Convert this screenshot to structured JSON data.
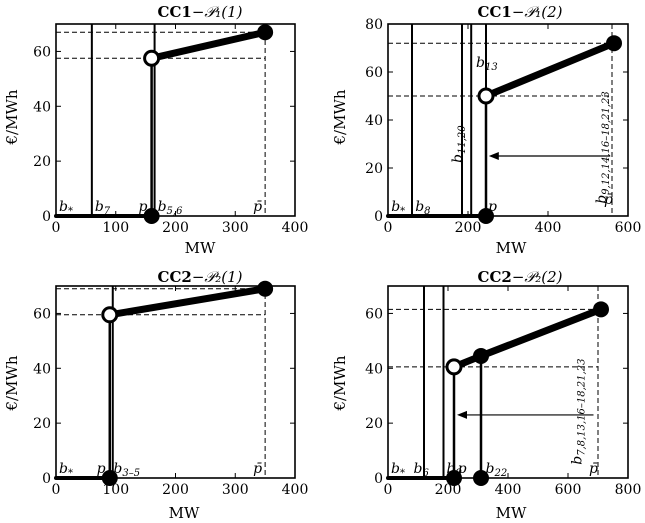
{
  "chart_data": [
    {
      "type": "line",
      "title": "CC1−𝒫₁(1)",
      "xlabel": "MW",
      "ylabel": "€/MWh",
      "xlim": [
        0,
        400
      ],
      "ylim": [
        0,
        70
      ],
      "xticks": [
        0,
        100,
        200,
        300,
        400
      ],
      "yticks": [
        0,
        20,
        40,
        60
      ],
      "grid": false,
      "series": [
        {
          "values": [
            [
              0,
              0
            ],
            [
              160,
              0
            ],
            [
              160,
              57.5
            ],
            [
              350,
              67
            ]
          ]
        }
      ],
      "open_points": [
        [
          160,
          57.5
        ]
      ],
      "filled_points": [
        [
          160,
          0
        ],
        [
          350,
          67
        ]
      ],
      "vlines": [
        60,
        165
      ],
      "hdash": [
        57.5,
        67
      ],
      "vdash": [
        350
      ],
      "labels": [
        {
          "text": "b*",
          "x": 5,
          "y": 0
        },
        {
          "text": "b7",
          "x": 65,
          "y": 0
        },
        {
          "text": "p",
          "x": 138,
          "y": 0
        },
        {
          "text": "b5,6",
          "x": 170,
          "y": 0
        },
        {
          "text": "p̄",
          "x": 330,
          "y": 0
        }
      ]
    },
    {
      "type": "line",
      "title": "CC1−𝒫₁(2)",
      "xlabel": "MW",
      "ylabel": "€/MWh",
      "xlim": [
        0,
        600
      ],
      "ylim": [
        0,
        80
      ],
      "xticks": [
        0,
        200,
        400,
        600
      ],
      "yticks": [
        0,
        20,
        40,
        60,
        80
      ],
      "grid": false,
      "series": [
        {
          "values": [
            [
              0,
              0
            ],
            [
              245,
              0
            ],
            [
              245,
              50
            ],
            [
              565,
              72
            ]
          ]
        }
      ],
      "open_points": [
        [
          245,
          50
        ]
      ],
      "filled_points": [
        [
          245,
          0
        ],
        [
          565,
          72
        ]
      ],
      "vlines": [
        60,
        185,
        208,
        245
      ],
      "hdash": [
        50,
        72
      ],
      "vdash": [
        560
      ],
      "arrow": {
        "from": 555,
        "to": 252,
        "y": 25
      },
      "labels": [
        {
          "text": "b*",
          "x": 8,
          "y": 0
        },
        {
          "text": "b8",
          "x": 68,
          "y": 0
        },
        {
          "text": "p",
          "x": 250,
          "y": 0
        },
        {
          "text": "b13",
          "x": 220,
          "y": 60
        },
        {
          "text": "b11,20",
          "x": 185,
          "y": 20,
          "rotate": true
        },
        {
          "text": "b9,12,14,16–18,21,23",
          "x": 545,
          "y": 3,
          "rotate": true
        },
        {
          "text": "p̄",
          "x": 540,
          "y": 3
        }
      ]
    },
    {
      "type": "line",
      "title": "CC2−𝒫₂(1)",
      "xlabel": "MW",
      "ylabel": "€/MWh",
      "xlim": [
        0,
        400
      ],
      "ylim": [
        0,
        70
      ],
      "xticks": [
        0,
        100,
        200,
        300,
        400
      ],
      "yticks": [
        0,
        20,
        40,
        60
      ],
      "grid": false,
      "series": [
        {
          "values": [
            [
              0,
              0
            ],
            [
              90,
              0
            ],
            [
              90,
              59.5
            ],
            [
              350,
              69
            ]
          ]
        }
      ],
      "open_points": [
        [
          90,
          59.5
        ]
      ],
      "filled_points": [
        [
          90,
          0
        ],
        [
          350,
          69
        ]
      ],
      "vlines": [
        95
      ],
      "hdash": [
        59.5,
        69
      ],
      "vdash": [
        350
      ],
      "labels": [
        {
          "text": "b*",
          "x": 5,
          "y": 0
        },
        {
          "text": "p",
          "x": 68,
          "y": 0
        },
        {
          "text": "b3–5",
          "x": 96,
          "y": 0
        },
        {
          "text": "p̄",
          "x": 330,
          "y": 0
        }
      ]
    },
    {
      "type": "line",
      "title": "CC2−𝒫₂(2)",
      "xlabel": "MW",
      "ylabel": "€/MWh",
      "xlim": [
        0,
        800
      ],
      "ylim": [
        0,
        70
      ],
      "xticks": [
        0,
        200,
        400,
        600,
        800
      ],
      "yticks": [
        0,
        20,
        40,
        60
      ],
      "grid": false,
      "series": [
        {
          "values": [
            [
              0,
              0
            ],
            [
              220,
              0
            ],
            [
              220,
              40.5
            ],
            [
              310,
              44.5
            ],
            [
              710,
              61.5
            ]
          ]
        },
        {
          "values": [
            [
              310,
              0
            ],
            [
              310,
              44.5
            ]
          ]
        }
      ],
      "open_points": [
        [
          220,
          40.5
        ]
      ],
      "filled_points": [
        [
          220,
          0
        ],
        [
          310,
          0
        ],
        [
          310,
          44.5
        ],
        [
          710,
          61.5
        ]
      ],
      "vlines": [
        120,
        185
      ],
      "hdash": [
        40.5,
        61.5
      ],
      "vdash": [
        700
      ],
      "arrow": {
        "from": 685,
        "to": 230,
        "y": 23
      },
      "labels": [
        {
          "text": "b*",
          "x": 10,
          "y": 0
        },
        {
          "text": "b6",
          "x": 85,
          "y": 0
        },
        {
          "text": "b9",
          "x": 195,
          "y": 0
        },
        {
          "text": "p",
          "x": 232,
          "y": 0
        },
        {
          "text": "b22",
          "x": 325,
          "y": 0
        },
        {
          "text": "b7,8,13,16–18,21,23",
          "x": 645,
          "y": 3,
          "rotate": true
        },
        {
          "text": "p̄",
          "x": 670,
          "y": 0
        }
      ]
    }
  ],
  "text": {
    "t0": "CC1",
    "s0": "−𝒫₁(1)",
    "t1": "CC1",
    "s1": "−𝒫₁(2)",
    "t2": "CC2",
    "s2": "−𝒫₂(1)",
    "t3": "CC2",
    "s3": "−𝒫₂(2)",
    "xlabel": "MW",
    "ylabel": "€/MWh"
  }
}
